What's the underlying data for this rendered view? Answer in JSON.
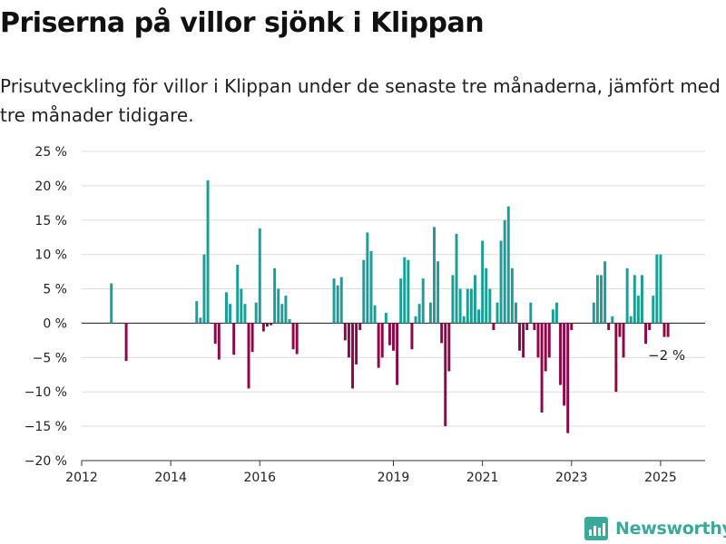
{
  "header": {
    "title": "Priserna på villor sjönk i Klippan",
    "subtitle": "Prisutveckling för villor i Klippan under de senaste tre månaderna, jämfört med tre månader tidigare."
  },
  "brand": {
    "name": "Newsworthy"
  },
  "colors": {
    "positive": "#1a9e95",
    "negative": "#8c0848",
    "grid": "#dddddd",
    "axis": "#333333"
  },
  "chart_data": {
    "type": "bar",
    "ylim": [
      -20,
      25
    ],
    "yticks": [
      25,
      20,
      15,
      10,
      5,
      0,
      -5,
      -10,
      -15,
      -20
    ],
    "ytick_labels": [
      "25 %",
      "20 %",
      "15 %",
      "10 %",
      "5 %",
      "0 %",
      "−5 %",
      "−10 %",
      "−15 %",
      "−20 %"
    ],
    "xlim": [
      "2012-01",
      "2026-01"
    ],
    "xticks": [
      "2012",
      "2014",
      "2016",
      "2019",
      "2021",
      "2023",
      "2025"
    ],
    "grid": true,
    "annotation": {
      "text": "−2 %",
      "x": "2025-02"
    },
    "points": [
      {
        "x": "2012-09",
        "y": 5.8
      },
      {
        "x": "2013-01",
        "y": -5.5
      },
      {
        "x": "2014-08",
        "y": 3.2
      },
      {
        "x": "2014-09",
        "y": 0.8
      },
      {
        "x": "2014-10",
        "y": 10.0
      },
      {
        "x": "2014-11",
        "y": 20.8
      },
      {
        "x": "2015-01",
        "y": -3.0
      },
      {
        "x": "2015-02",
        "y": -5.3
      },
      {
        "x": "2015-04",
        "y": 4.5
      },
      {
        "x": "2015-05",
        "y": 2.8
      },
      {
        "x": "2015-06",
        "y": -4.6
      },
      {
        "x": "2015-07",
        "y": 8.5
      },
      {
        "x": "2015-08",
        "y": 5.0
      },
      {
        "x": "2015-09",
        "y": 2.8
      },
      {
        "x": "2015-10",
        "y": -9.5
      },
      {
        "x": "2015-11",
        "y": -4.2
      },
      {
        "x": "2015-12",
        "y": 3.0
      },
      {
        "x": "2016-01",
        "y": 13.8
      },
      {
        "x": "2016-02",
        "y": -1.2
      },
      {
        "x": "2016-03",
        "y": -0.5
      },
      {
        "x": "2016-04",
        "y": -0.3
      },
      {
        "x": "2016-05",
        "y": 8.0
      },
      {
        "x": "2016-06",
        "y": 5.0
      },
      {
        "x": "2016-07",
        "y": 2.8
      },
      {
        "x": "2016-08",
        "y": 4.0
      },
      {
        "x": "2016-09",
        "y": 0.6
      },
      {
        "x": "2016-10",
        "y": -3.8
      },
      {
        "x": "2016-11",
        "y": -4.5
      },
      {
        "x": "2017-09",
        "y": 6.5
      },
      {
        "x": "2017-10",
        "y": 5.5
      },
      {
        "x": "2017-11",
        "y": 6.7
      },
      {
        "x": "2017-12",
        "y": -2.5
      },
      {
        "x": "2018-01",
        "y": -5.0
      },
      {
        "x": "2018-02",
        "y": -9.5
      },
      {
        "x": "2018-03",
        "y": -6.0
      },
      {
        "x": "2018-04",
        "y": -1.0
      },
      {
        "x": "2018-05",
        "y": 9.2
      },
      {
        "x": "2018-06",
        "y": 13.2
      },
      {
        "x": "2018-07",
        "y": 10.5
      },
      {
        "x": "2018-08",
        "y": 2.6
      },
      {
        "x": "2018-09",
        "y": -6.5
      },
      {
        "x": "2018-10",
        "y": -5.0
      },
      {
        "x": "2018-11",
        "y": 1.5
      },
      {
        "x": "2018-12",
        "y": -3.2
      },
      {
        "x": "2019-01",
        "y": -4.0
      },
      {
        "x": "2019-02",
        "y": -9.0
      },
      {
        "x": "2019-03",
        "y": 6.5
      },
      {
        "x": "2019-04",
        "y": 9.6
      },
      {
        "x": "2019-05",
        "y": 9.2
      },
      {
        "x": "2019-06",
        "y": -3.8
      },
      {
        "x": "2019-07",
        "y": 1.0
      },
      {
        "x": "2019-08",
        "y": 2.8
      },
      {
        "x": "2019-09",
        "y": 6.5
      },
      {
        "x": "2019-11",
        "y": 3.0
      },
      {
        "x": "2019-12",
        "y": 14.0
      },
      {
        "x": "2020-01",
        "y": 9.0
      },
      {
        "x": "2020-02",
        "y": -2.9
      },
      {
        "x": "2020-03",
        "y": -15.0
      },
      {
        "x": "2020-04",
        "y": -7.0
      },
      {
        "x": "2020-05",
        "y": 7.0
      },
      {
        "x": "2020-06",
        "y": 13.0
      },
      {
        "x": "2020-07",
        "y": 5.0
      },
      {
        "x": "2020-08",
        "y": 1.0
      },
      {
        "x": "2020-09",
        "y": 5.0
      },
      {
        "x": "2020-10",
        "y": 5.0
      },
      {
        "x": "2020-11",
        "y": 7.0
      },
      {
        "x": "2020-12",
        "y": 2.0
      },
      {
        "x": "2021-01",
        "y": 12.0
      },
      {
        "x": "2021-02",
        "y": 8.0
      },
      {
        "x": "2021-03",
        "y": 5.0
      },
      {
        "x": "2021-04",
        "y": -1.0
      },
      {
        "x": "2021-05",
        "y": 3.0
      },
      {
        "x": "2021-06",
        "y": 12.0
      },
      {
        "x": "2021-07",
        "y": 15.0
      },
      {
        "x": "2021-08",
        "y": 17.0
      },
      {
        "x": "2021-09",
        "y": 8.0
      },
      {
        "x": "2021-10",
        "y": 3.0
      },
      {
        "x": "2021-11",
        "y": -4.0
      },
      {
        "x": "2021-12",
        "y": -5.0
      },
      {
        "x": "2022-01",
        "y": -1.0
      },
      {
        "x": "2022-02",
        "y": 3.0
      },
      {
        "x": "2022-03",
        "y": -1.0
      },
      {
        "x": "2022-04",
        "y": -5.0
      },
      {
        "x": "2022-05",
        "y": -13.0
      },
      {
        "x": "2022-06",
        "y": -7.0
      },
      {
        "x": "2022-07",
        "y": -5.0
      },
      {
        "x": "2022-08",
        "y": 2.0
      },
      {
        "x": "2022-09",
        "y": 3.0
      },
      {
        "x": "2022-10",
        "y": -9.0
      },
      {
        "x": "2022-11",
        "y": -12.0
      },
      {
        "x": "2022-12",
        "y": -16.0
      },
      {
        "x": "2023-01",
        "y": -1.0
      },
      {
        "x": "2023-07",
        "y": 3.0
      },
      {
        "x": "2023-08",
        "y": 7.0
      },
      {
        "x": "2023-09",
        "y": 7.0
      },
      {
        "x": "2023-10",
        "y": 9.0
      },
      {
        "x": "2023-11",
        "y": -1.0
      },
      {
        "x": "2023-12",
        "y": 1.0
      },
      {
        "x": "2024-01",
        "y": -10.0
      },
      {
        "x": "2024-02",
        "y": -2.0
      },
      {
        "x": "2024-03",
        "y": -5.0
      },
      {
        "x": "2024-04",
        "y": 8.0
      },
      {
        "x": "2024-05",
        "y": 1.0
      },
      {
        "x": "2024-06",
        "y": 7.0
      },
      {
        "x": "2024-07",
        "y": 4.0
      },
      {
        "x": "2024-08",
        "y": 7.0
      },
      {
        "x": "2024-09",
        "y": -3.0
      },
      {
        "x": "2024-10",
        "y": -1.0
      },
      {
        "x": "2024-11",
        "y": 4.0
      },
      {
        "x": "2024-12",
        "y": 10.0
      },
      {
        "x": "2025-01",
        "y": 10.0
      },
      {
        "x": "2025-02",
        "y": -2.0
      },
      {
        "x": "2025-03",
        "y": -2.0
      }
    ]
  }
}
